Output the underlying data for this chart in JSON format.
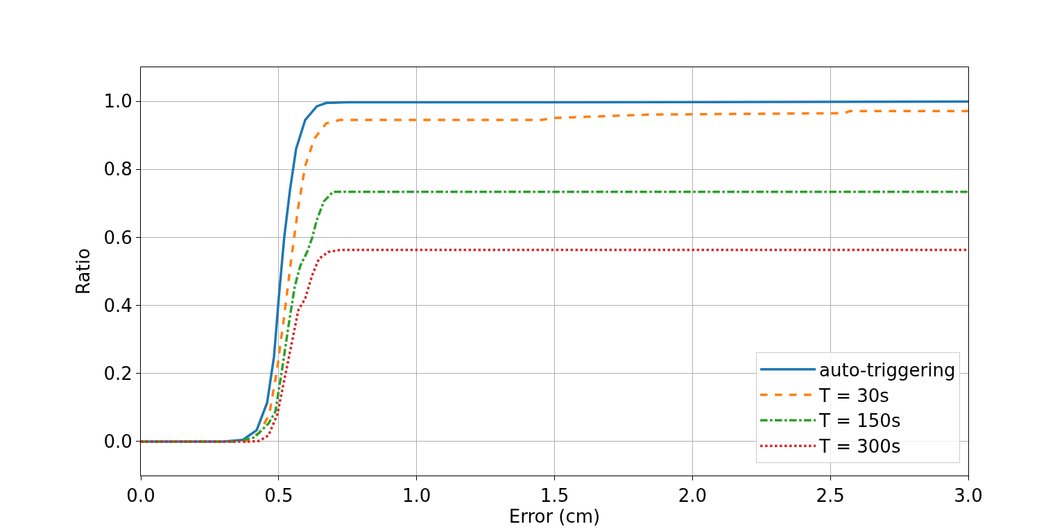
{
  "chart_data": {
    "type": "line",
    "xlabel": "Error (cm)",
    "ylabel": "Ratio",
    "xlim": [
      0,
      3
    ],
    "ylim": [
      -0.1,
      1.1
    ],
    "xticks": [
      {
        "value": 0,
        "label": "0.0"
      },
      {
        "value": 0.5,
        "label": "0.5"
      },
      {
        "value": 1,
        "label": "1.0"
      },
      {
        "value": 1.5,
        "label": "1.5"
      },
      {
        "value": 2,
        "label": "2.0"
      },
      {
        "value": 2.5,
        "label": "2.5"
      },
      {
        "value": 3,
        "label": "3.0"
      }
    ],
    "yticks": [
      {
        "value": 0,
        "label": "0.0"
      },
      {
        "value": 0.2,
        "label": "0.2"
      },
      {
        "value": 0.4,
        "label": "0.4"
      },
      {
        "value": 0.6,
        "label": "0.6"
      },
      {
        "value": 0.8,
        "label": "0.8"
      },
      {
        "value": 1,
        "label": "1.0"
      }
    ],
    "grid": true,
    "legend": "bottom right",
    "series": [
      {
        "name": "auto-triggering",
        "color": "#1f77b4",
        "line_style": "solid",
        "x": [
          0,
          0.3,
          0.37,
          0.42,
          0.458,
          0.483,
          0.5,
          0.52,
          0.541,
          0.563,
          0.596,
          0.638,
          0.672,
          0.75,
          1.5,
          3.0
        ],
        "values": [
          0,
          0,
          0.005,
          0.033,
          0.114,
          0.25,
          0.42,
          0.6,
          0.74,
          0.86,
          0.945,
          0.985,
          0.995,
          0.997,
          0.997,
          0.999
        ]
      },
      {
        "name": "T = 30s",
        "color": "#ff7f0e",
        "line_style": "dashed",
        "x": [
          0,
          0.38,
          0.43,
          0.466,
          0.495,
          0.52,
          0.546,
          0.571,
          0.596,
          0.629,
          0.672,
          0.722,
          1.45,
          1.5,
          1.85,
          2.55,
          2.57,
          3.0
        ],
        "values": [
          0,
          0,
          0.026,
          0.08,
          0.216,
          0.37,
          0.54,
          0.69,
          0.81,
          0.89,
          0.935,
          0.945,
          0.945,
          0.951,
          0.961,
          0.965,
          0.971,
          0.971
        ]
      },
      {
        "name": "T = 150s",
        "color": "#2ca02c",
        "line_style": "dashdot",
        "x": [
          0,
          0.35,
          0.412,
          0.463,
          0.488,
          0.513,
          0.538,
          0.558,
          0.578,
          0.603,
          0.621,
          0.638,
          0.664,
          0.697,
          3.0
        ],
        "values": [
          0,
          0,
          0.012,
          0.053,
          0.088,
          0.216,
          0.353,
          0.455,
          0.516,
          0.557,
          0.598,
          0.651,
          0.706,
          0.734,
          0.734
        ]
      },
      {
        "name": "T = 300s",
        "color": "#d62728",
        "line_style": "dotted",
        "x": [
          0,
          0.4,
          0.43,
          0.463,
          0.495,
          0.52,
          0.546,
          0.571,
          0.596,
          0.621,
          0.646,
          0.679,
          0.722,
          3.0
        ],
        "values": [
          0,
          0,
          0.002,
          0.018,
          0.08,
          0.18,
          0.284,
          0.386,
          0.42,
          0.488,
          0.537,
          0.557,
          0.563,
          0.563
        ]
      }
    ]
  }
}
